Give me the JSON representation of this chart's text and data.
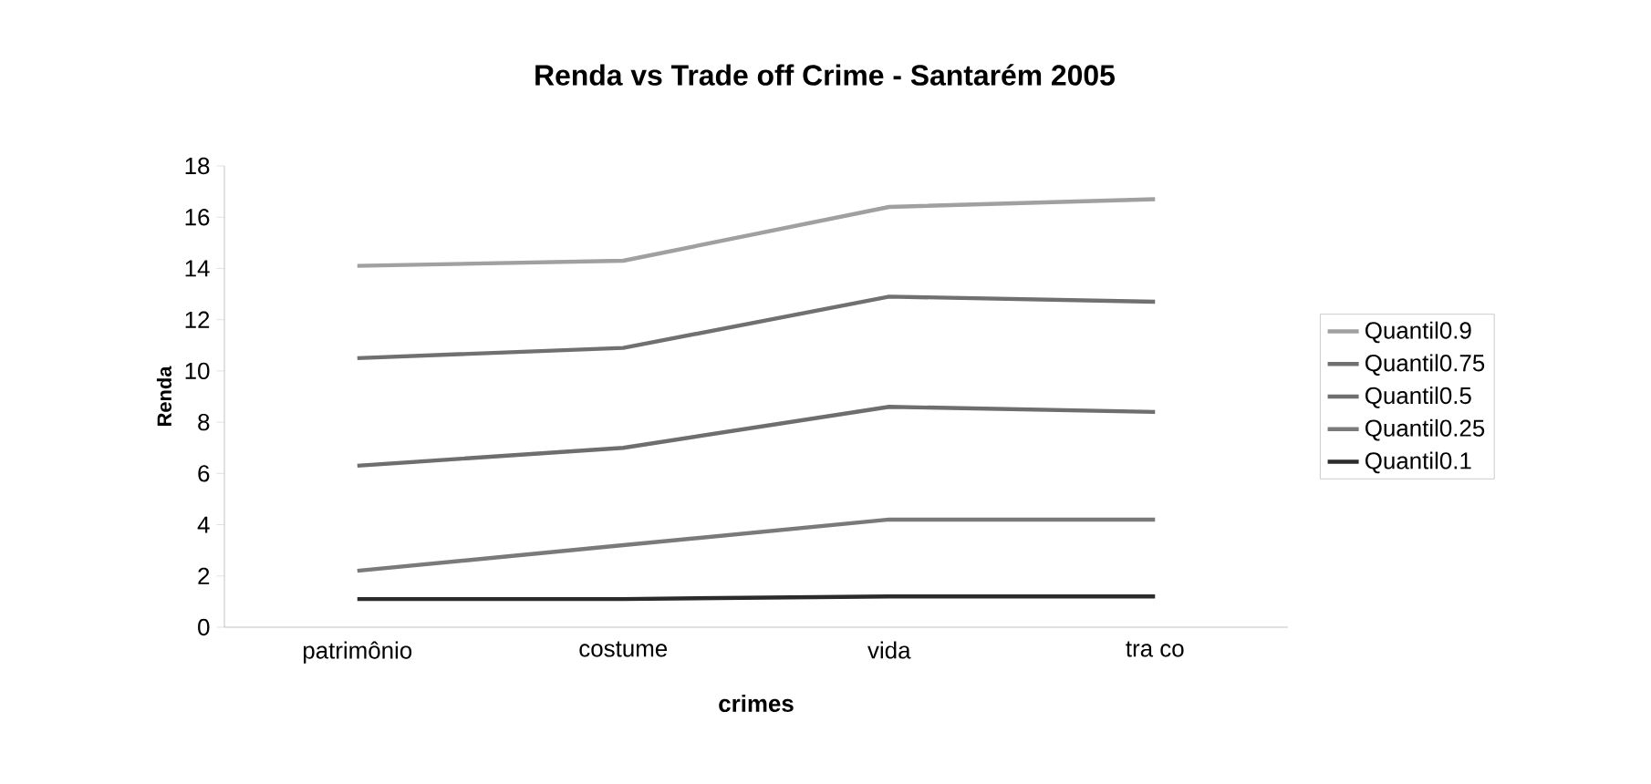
{
  "chart_data": {
    "type": "line",
    "title": "Renda vs Trade off Crime - Santarém 2005",
    "xlabel": "crimes",
    "ylabel": "Renda",
    "categories": [
      "patrimônio",
      "costume",
      "vida",
      "tra co"
    ],
    "series": [
      {
        "name": "Quantil0.9",
        "color": "#a0a0a0",
        "values": [
          14.1,
          14.3,
          16.4,
          16.7
        ]
      },
      {
        "name": "Quantil0.75",
        "color": "#707070",
        "values": [
          10.5,
          10.9,
          12.9,
          12.7
        ]
      },
      {
        "name": "Quantil0.5",
        "color": "#6e6e6e",
        "values": [
          6.3,
          7.0,
          8.6,
          8.4
        ]
      },
      {
        "name": "Quantil0.25",
        "color": "#7a7a7a",
        "values": [
          2.2,
          3.2,
          4.2,
          4.2
        ]
      },
      {
        "name": "Quantil0.1",
        "color": "#2b2b2b",
        "values": [
          1.1,
          1.1,
          1.2,
          1.2
        ]
      }
    ],
    "ylim": [
      0,
      18
    ],
    "yticks": [
      0,
      2,
      4,
      6,
      8,
      10,
      12,
      14,
      16,
      18
    ],
    "grid": false,
    "legend": "right",
    "marker": "none",
    "line_style": "solid"
  }
}
